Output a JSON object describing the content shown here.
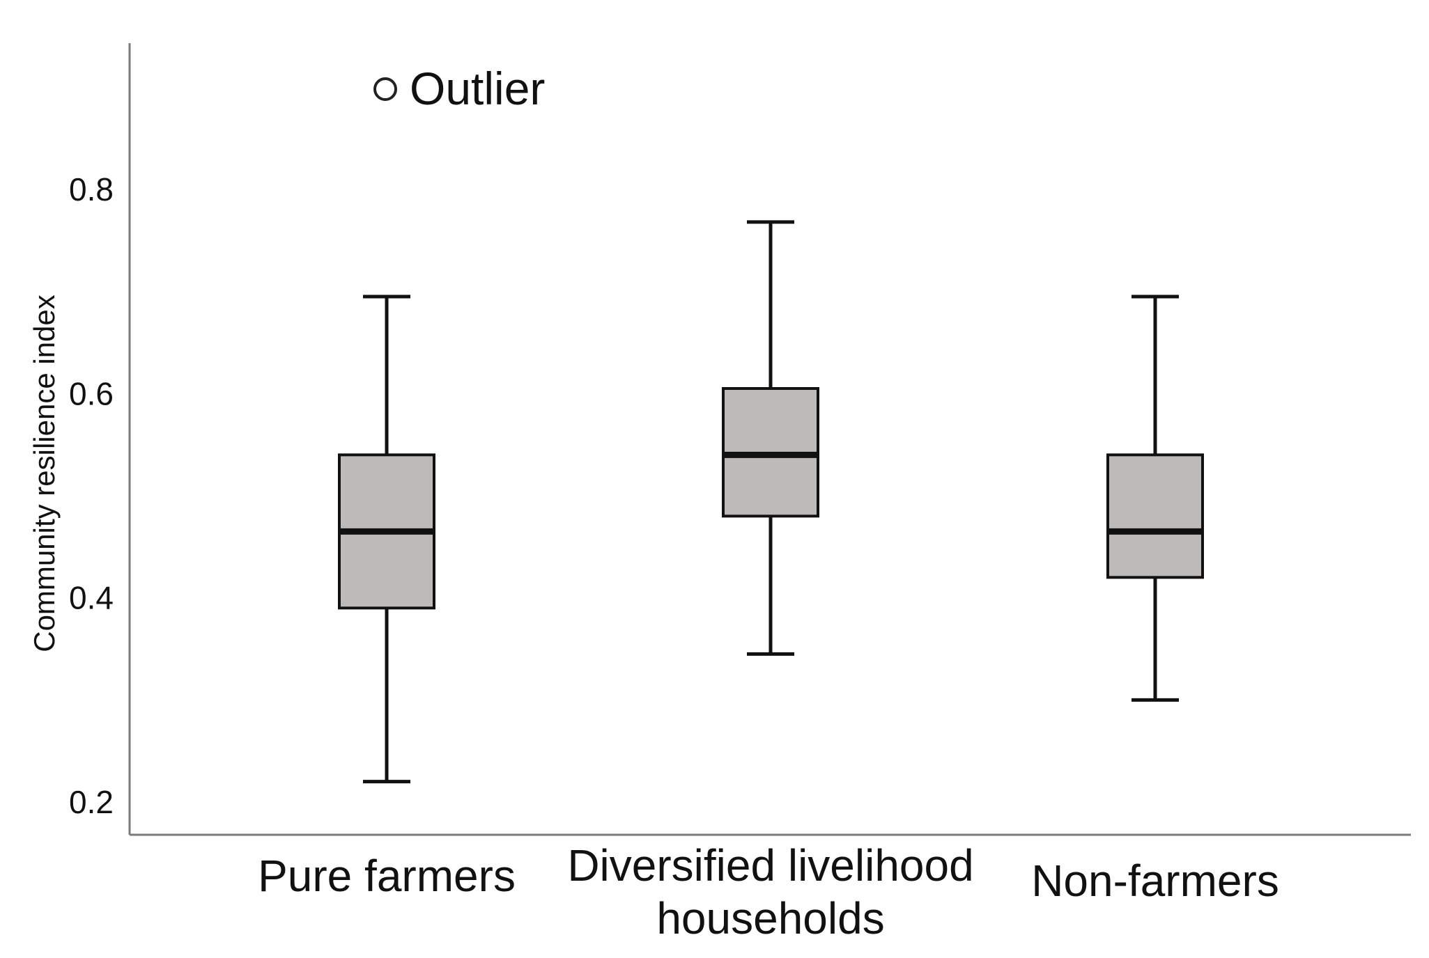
{
  "chart_data": {
    "type": "boxplot",
    "ylabel": "Community resilience index",
    "xlabel": "",
    "ylim": [
      0.16,
      0.96
    ],
    "yticks": [
      0.2,
      0.4,
      0.6,
      0.8
    ],
    "ytick_labels": [
      "0.2",
      "0.4",
      "0.6",
      "0.8"
    ],
    "grid": false,
    "legend": {
      "position": "top-left",
      "marker": "open-circle",
      "label": "Outlier"
    },
    "categories": [
      {
        "label_lines": [
          "Pure farmers"
        ],
        "min": 0.22,
        "q1": 0.39,
        "median": 0.465,
        "q3": 0.54,
        "max": 0.695
      },
      {
        "label_lines": [
          "Diversified livelihood",
          "households"
        ],
        "min": 0.345,
        "q1": 0.48,
        "median": 0.54,
        "q3": 0.605,
        "max": 0.768
      },
      {
        "label_lines": [
          "Non-farmers"
        ],
        "min": 0.3,
        "q1": 0.42,
        "median": 0.465,
        "q3": 0.54,
        "max": 0.695
      }
    ],
    "colors": {
      "box_fill": "#bdbaba",
      "stroke": "#111111",
      "axis": "#7a7a7a"
    }
  }
}
